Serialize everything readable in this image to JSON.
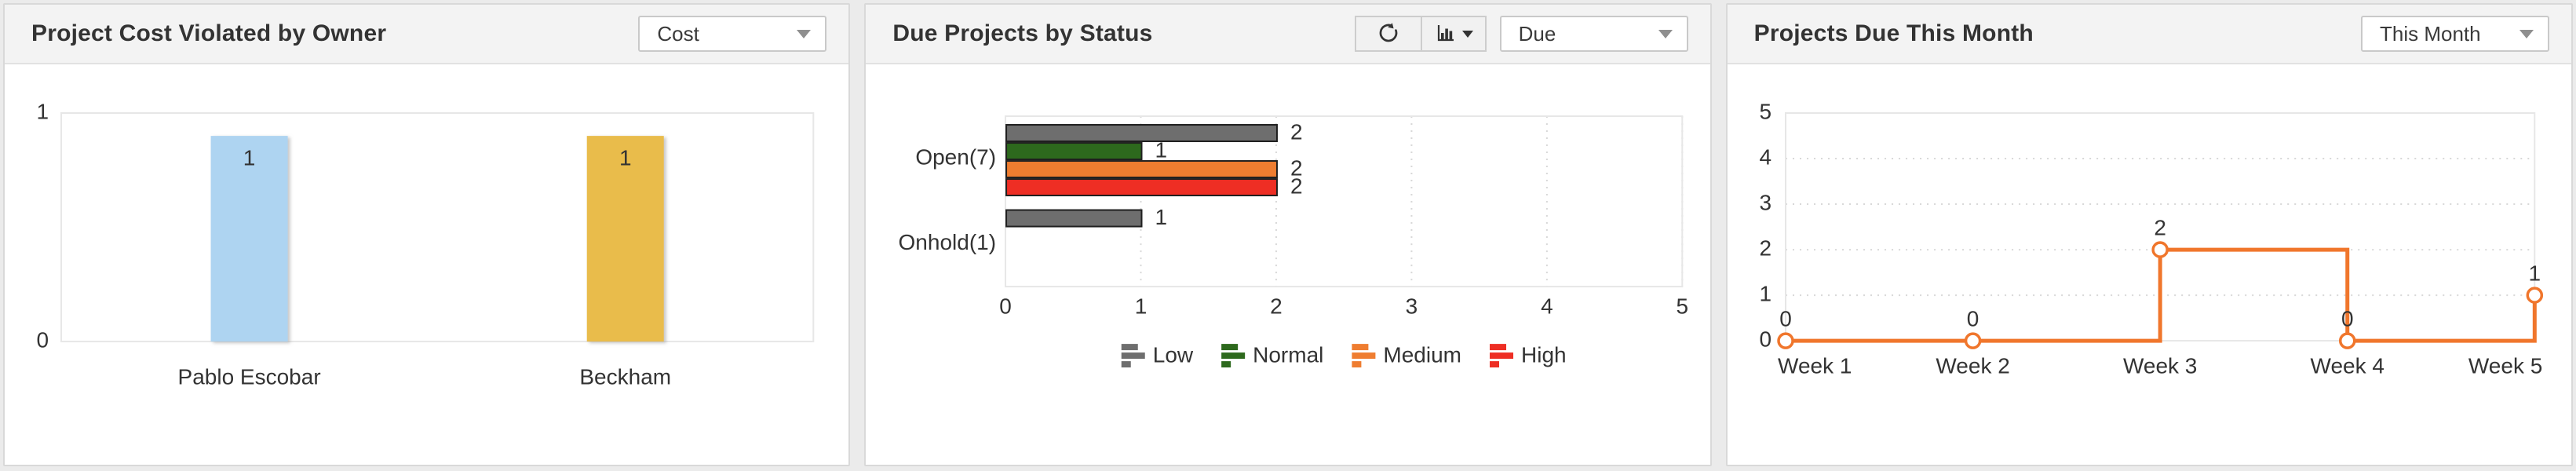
{
  "panels": [
    {
      "title": "Project Cost Violated by Owner",
      "dropdown": {
        "value": "Cost",
        "icon": "chevron-down-icon"
      }
    },
    {
      "title": "Due Projects by Status",
      "toolbar": {
        "refresh_icon": "refresh-icon",
        "chart_type_icon": "bar-chart-icon",
        "chart_type_caret": "chevron-down-icon"
      },
      "dropdown": {
        "value": "Due",
        "icon": "chevron-down-icon"
      }
    },
    {
      "title": "Projects Due This Month",
      "dropdown": {
        "value": "This Month",
        "icon": "chevron-down-icon"
      }
    }
  ],
  "chart_data": [
    {
      "type": "bar",
      "title": "Project Cost Violated by Owner",
      "categories": [
        "Pablo Escobar",
        "Beckham"
      ],
      "values": [
        1,
        1
      ],
      "data_labels": [
        1,
        1
      ],
      "bar_colors": [
        "#aed4f1",
        "#e9bc4b"
      ],
      "ylim": [
        0,
        1
      ],
      "yticks": [
        0,
        1
      ],
      "grid": false,
      "legend_position": "none"
    },
    {
      "type": "bar-horizontal-grouped",
      "title": "Due Projects by Status",
      "categories": [
        "Open(7)",
        "Onhold(1)"
      ],
      "series": [
        {
          "name": "Low",
          "color": "#6e6e6e",
          "values": [
            2,
            1
          ]
        },
        {
          "name": "Normal",
          "color": "#2d691d",
          "values": [
            1,
            0
          ]
        },
        {
          "name": "Medium",
          "color": "#ef7d30",
          "values": [
            2,
            0
          ]
        },
        {
          "name": "High",
          "color": "#ee2e24",
          "values": [
            2,
            0
          ]
        }
      ],
      "xlim": [
        0,
        5
      ],
      "xticks": [
        0,
        1,
        2,
        3,
        4,
        5
      ],
      "bar_outline": "#1f1f1f",
      "grid": "dotted-vertical",
      "legend_position": "bottom"
    },
    {
      "type": "line-step",
      "title": "Projects Due This Month",
      "x": [
        "Week 1",
        "Week 2",
        "Week 3",
        "Week 4",
        "Week 5"
      ],
      "values": [
        0,
        0,
        2,
        0,
        1
      ],
      "data_labels": [
        0,
        0,
        2,
        0,
        1
      ],
      "line_color": "#f0762c",
      "marker": "open-circle",
      "ylim": [
        0,
        5
      ],
      "yticks": [
        0,
        1,
        2,
        3,
        4,
        5
      ],
      "grid": "dotted-horizontal",
      "legend_position": "none"
    }
  ],
  "colors": {
    "accent_blue_bar": "#aed4f1",
    "accent_gold_bar": "#e9bc4b",
    "status_low": "#6e6e6e",
    "status_normal": "#2d691d",
    "status_medium": "#ef7d30",
    "status_high": "#ee2e24",
    "line_orange": "#f0762c"
  }
}
